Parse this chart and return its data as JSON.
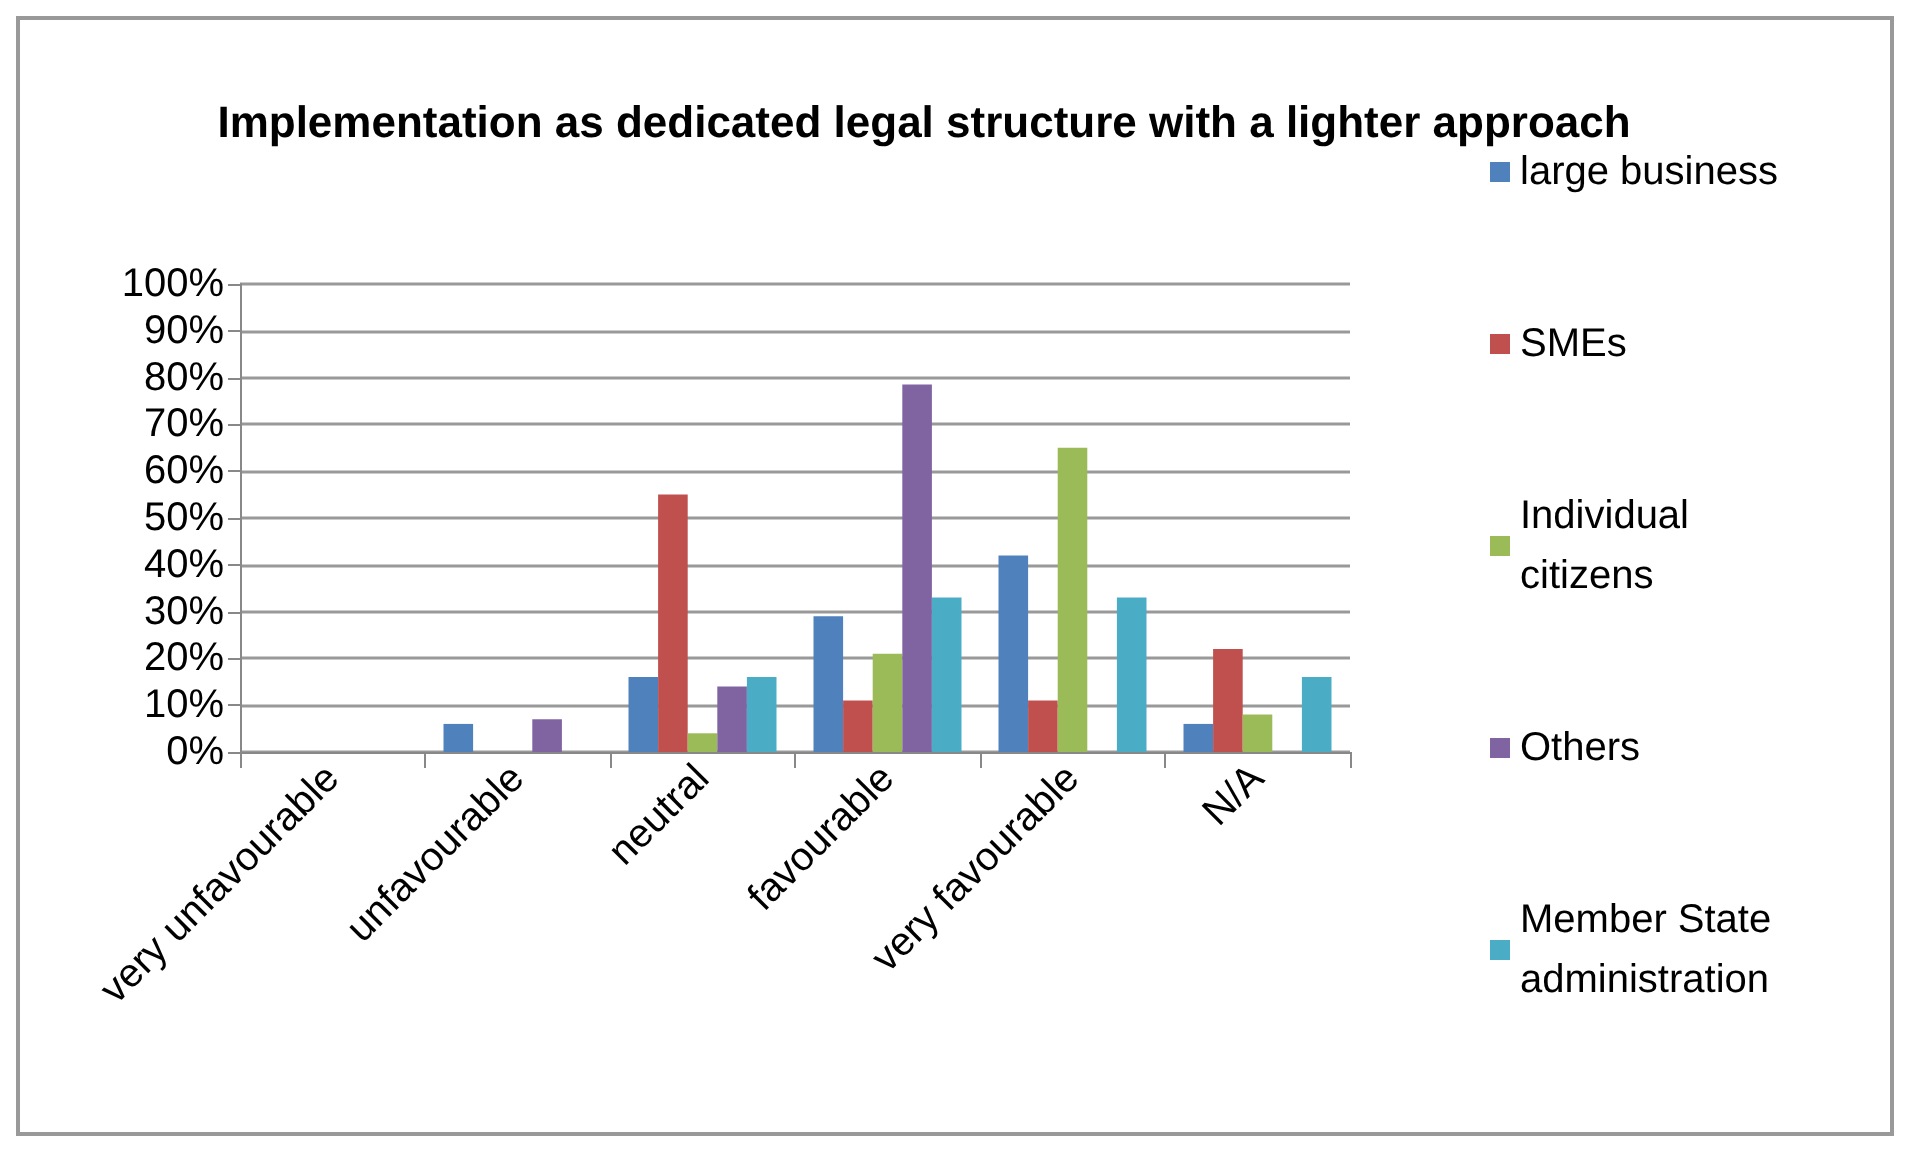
{
  "chart_data": {
    "type": "bar",
    "title": "Implementation as dedicated legal structure with a lighter approach",
    "categories": [
      "very unfavourable",
      "unfavourable",
      "neutral",
      "favourable",
      "very favourable",
      "N/A"
    ],
    "series": [
      {
        "name": "large business",
        "color": "#4f81bd",
        "values": [
          0,
          6,
          16,
          29,
          42,
          6
        ]
      },
      {
        "name": "SMEs",
        "color": "#c0504d",
        "values": [
          0,
          0,
          55,
          11,
          11,
          22
        ]
      },
      {
        "name": "Individual citizens",
        "color": "#9bbb59",
        "values": [
          0,
          0,
          4,
          21,
          65,
          8
        ]
      },
      {
        "name": "Others",
        "color": "#8064a2",
        "values": [
          0,
          7,
          14,
          78.5,
          0,
          0
        ]
      },
      {
        "name": "Member State administration",
        "color": "#4bacc6",
        "values": [
          0,
          0,
          16,
          33,
          33,
          16
        ]
      }
    ],
    "ylim": [
      0,
      100
    ],
    "yticks": [
      {
        "value": 0,
        "label": "0%"
      },
      {
        "value": 10,
        "label": "10%"
      },
      {
        "value": 20,
        "label": "20%"
      },
      {
        "value": 30,
        "label": "30%"
      },
      {
        "value": 40,
        "label": "40%"
      },
      {
        "value": 50,
        "label": "50%"
      },
      {
        "value": 60,
        "label": "60%"
      },
      {
        "value": 70,
        "label": "70%"
      },
      {
        "value": 80,
        "label": "80%"
      },
      {
        "value": 90,
        "label": "90%"
      },
      {
        "value": 100,
        "label": "100%"
      }
    ],
    "grid": "y",
    "legend": "right"
  }
}
